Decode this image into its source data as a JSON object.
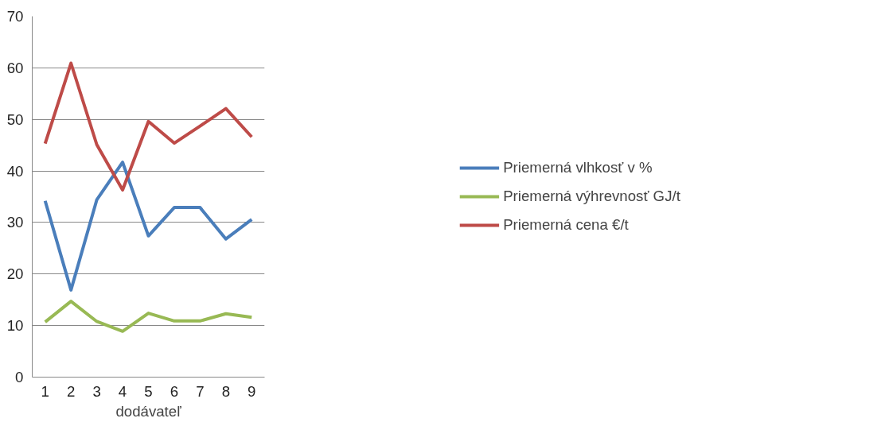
{
  "chart_data": {
    "type": "line",
    "xlabel": "dodávateľ",
    "categories": [
      "1",
      "2",
      "3",
      "4",
      "5",
      "6",
      "7",
      "8",
      "9"
    ],
    "series": [
      {
        "name": "Priemerná vlhkosť v %",
        "color": "#4a7ebb",
        "values": [
          34.2,
          16.9,
          34.4,
          41.7,
          27.4,
          32.9,
          32.9,
          26.8,
          30.6
        ]
      },
      {
        "name": "Priemerná výhrevnosť GJ/t",
        "color": "#98b954",
        "values": [
          10.7,
          14.7,
          10.8,
          8.9,
          12.4,
          10.9,
          10.9,
          12.3,
          11.6
        ]
      },
      {
        "name": "Priemerná cena €/t",
        "color": "#be4b48",
        "values": [
          45.3,
          60.9,
          45.1,
          36.3,
          49.6,
          45.4,
          48.7,
          52.1,
          46.6
        ]
      }
    ],
    "ylim": [
      0,
      70
    ],
    "yticks": [
      0,
      10,
      20,
      30,
      40,
      50,
      60,
      70
    ],
    "grid": "y",
    "legend": "right",
    "marker": "none",
    "line_style": "solid"
  }
}
